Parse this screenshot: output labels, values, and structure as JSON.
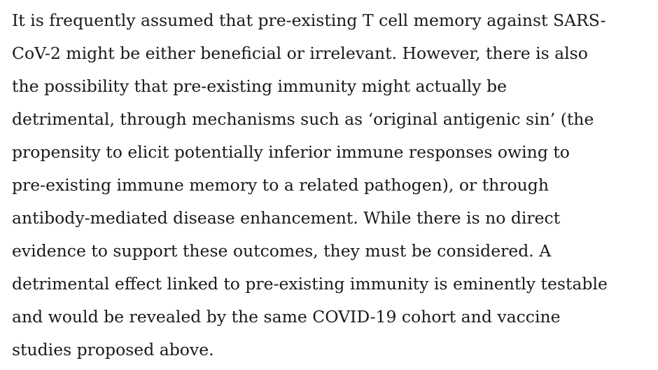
{
  "paragraph": {
    "lines": [
      "It is frequently assumed that pre-existing T cell memory against SARS-",
      "CoV-2 might be either beneficial or irrelevant. However, there is also",
      "the possibility that pre-existing immunity might actually be",
      "detrimental, through mechanisms such as ‘original antigenic sin’ (the",
      "propensity to elicit potentially inferior immune responses owing to",
      "pre-existing immune memory to a related pathogen), or through",
      "antibody-mediated disease enhancement. While there is no direct",
      "evidence to support these outcomes, they must be considered. A",
      "detrimental effect linked to pre-existing immunity is eminently testable",
      "and would be revealed by the same COVID-19 cohort and vaccine",
      "studies proposed above."
    ]
  }
}
